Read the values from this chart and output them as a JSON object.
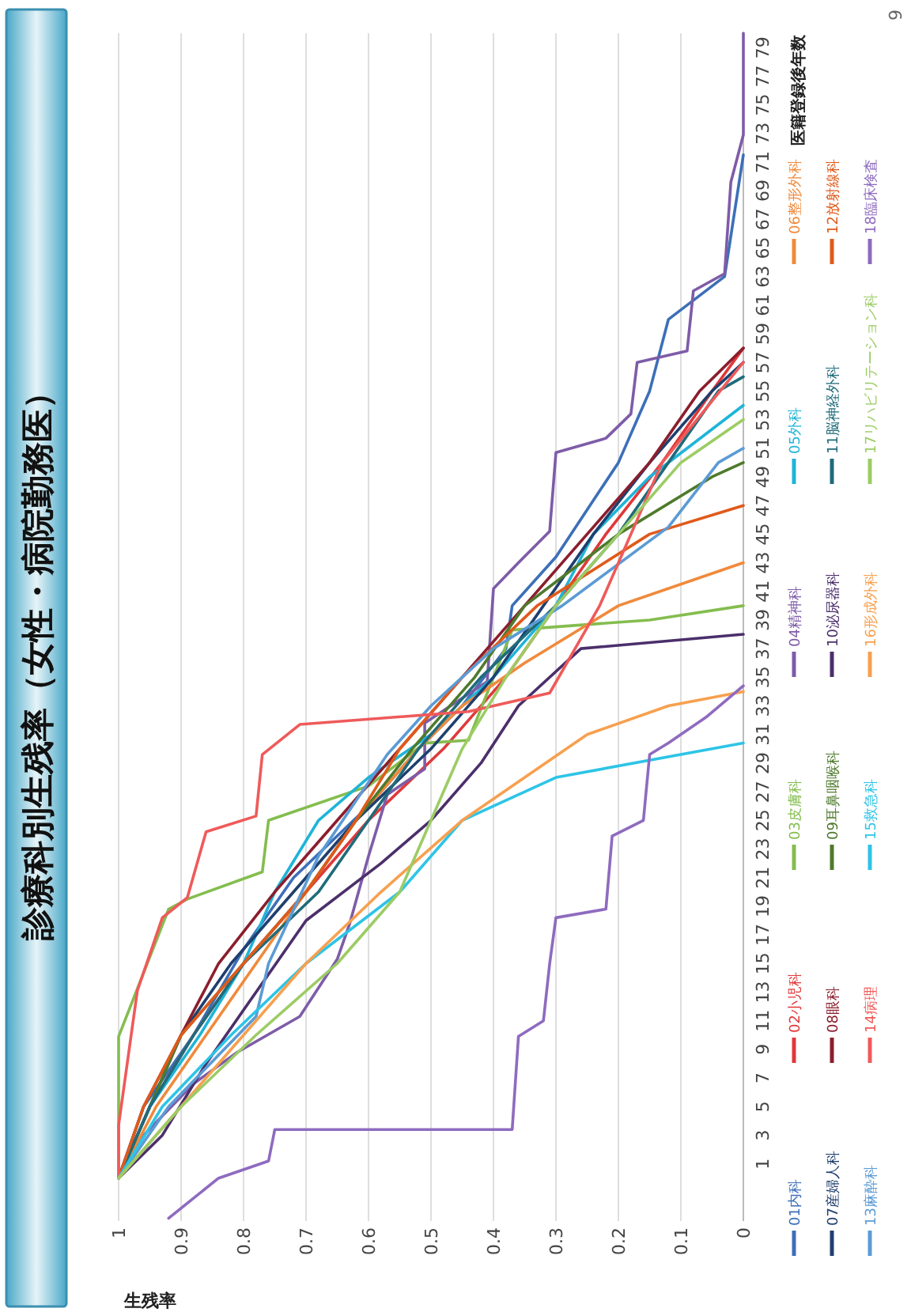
{
  "chart_data": {
    "type": "line",
    "title": "診療科別生残率（女性・病院勤務医）",
    "xlabel": "生残率",
    "ylabel": "医籍登録後年数",
    "xlim": [
      1,
      0
    ],
    "ylim": [
      -3,
      80
    ],
    "xticks": [
      0,
      0.1,
      0.2,
      0.3,
      0.4,
      0.5,
      0.6,
      0.7,
      0.8,
      0.9,
      1
    ],
    "yticks": [
      1,
      3,
      5,
      7,
      9,
      11,
      13,
      15,
      17,
      19,
      21,
      23,
      25,
      27,
      29,
      31,
      33,
      35,
      37,
      39,
      41,
      43,
      45,
      47,
      49,
      51,
      53,
      55,
      57,
      59,
      61,
      63,
      65,
      67,
      69,
      71,
      73,
      75,
      77,
      79
    ],
    "grid": "x",
    "legend": "right",
    "annotations": [
      "9"
    ],
    "series": [
      {
        "name": "01内科",
        "color": "#3d6fb8",
        "values": [
          0,
          5,
          10,
          16,
          21,
          26,
          30,
          33,
          37,
          40,
          43.4,
          50,
          55,
          60,
          63,
          71.5
        ],
        "x": [
          1,
          0.96,
          0.88,
          0.8,
          0.72,
          0.6,
          0.52,
          0.45,
          0.38,
          0.37,
          0.3,
          0.2,
          0.15,
          0.12,
          0.03,
          0
        ]
      },
      {
        "name": "02小児科",
        "color": "#e0383a",
        "values": [
          0,
          5,
          10,
          15,
          20,
          25,
          30,
          35,
          40,
          45,
          50,
          55,
          58
        ],
        "x": [
          1,
          0.95,
          0.88,
          0.8,
          0.7,
          0.6,
          0.48,
          0.38,
          0.3,
          0.22,
          0.13,
          0.05,
          0
        ]
      },
      {
        "name": "03皮膚科",
        "color": "#84bd4f",
        "values": [
          0,
          2,
          9.9,
          18.8,
          19.5,
          21.4,
          25,
          27.4,
          30.4,
          30.6,
          38.3,
          39,
          40
        ],
        "x": [
          1,
          1,
          1,
          0.92,
          0.89,
          0.77,
          0.76,
          0.6,
          0.51,
          0.44,
          0.37,
          0.15,
          0
        ]
      },
      {
        "name": "04精神科",
        "color": "#7e5ca8",
        "values": [
          0,
          3,
          6.6,
          8.8,
          11.3,
          15.3,
          17.8,
          22.5,
          26.8,
          28.6,
          31.8,
          34.7,
          41.2,
          43,
          45.2,
          50.7,
          51.7,
          53.4,
          57,
          57.8,
          62,
          63.2,
          69.6,
          72.9,
          80
        ],
        "x": [
          1,
          0.96,
          0.88,
          0.81,
          0.71,
          0.65,
          0.63,
          0.6,
          0.57,
          0.51,
          0.51,
          0.41,
          0.4,
          0.36,
          0.31,
          0.3,
          0.22,
          0.18,
          0.17,
          0.09,
          0.08,
          0.03,
          0.02,
          0,
          0
        ]
      },
      {
        "name": "05外科",
        "color": "#1fb4d8",
        "values": [
          0,
          5,
          10,
          15,
          20,
          25,
          28,
          31,
          35,
          40,
          45,
          49,
          54
        ],
        "x": [
          1,
          0.95,
          0.87,
          0.8,
          0.75,
          0.68,
          0.6,
          0.5,
          0.4,
          0.3,
          0.24,
          0.15,
          0
        ]
      },
      {
        "name": "06整形外科",
        "color": "#f08a3c",
        "values": [
          0,
          5,
          10,
          15,
          20,
          25,
          30,
          33,
          36,
          40,
          43
        ],
        "x": [
          1,
          0.94,
          0.86,
          0.78,
          0.7,
          0.62,
          0.52,
          0.45,
          0.35,
          0.2,
          0
        ]
      },
      {
        "name": "07産婦人科",
        "color": "#1f3f6e",
        "values": [
          0,
          5,
          10,
          15,
          20,
          25,
          30,
          35,
          40,
          45,
          50,
          55,
          57
        ],
        "x": [
          1,
          0.95,
          0.9,
          0.82,
          0.72,
          0.62,
          0.5,
          0.4,
          0.32,
          0.24,
          0.15,
          0.05,
          0
        ]
      },
      {
        "name": "08眼科",
        "color": "#8b1e2d",
        "values": [
          0,
          5,
          10,
          15,
          20,
          25,
          30,
          35,
          40,
          45,
          50,
          55,
          58
        ],
        "x": [
          1,
          0.96,
          0.9,
          0.84,
          0.75,
          0.65,
          0.55,
          0.45,
          0.35,
          0.25,
          0.15,
          0.07,
          0
        ]
      },
      {
        "name": "09耳鼻咽喉科",
        "color": "#4e7a2c",
        "values": [
          0,
          5,
          10,
          15,
          20,
          25,
          30,
          35,
          40,
          45,
          49,
          50
        ],
        "x": [
          1,
          0.95,
          0.9,
          0.8,
          0.7,
          0.62,
          0.53,
          0.43,
          0.35,
          0.2,
          0.05,
          0
        ]
      },
      {
        "name": "10泌尿器科",
        "color": "#4b2f6b",
        "values": [
          0,
          3,
          8,
          13,
          18,
          22,
          25,
          29,
          33,
          37,
          38
        ],
        "x": [
          1,
          0.93,
          0.86,
          0.78,
          0.7,
          0.58,
          0.5,
          0.42,
          0.36,
          0.26,
          0
        ]
      },
      {
        "name": "11脳神経外科",
        "color": "#1f6b7a",
        "values": [
          0,
          5,
          10,
          15,
          20,
          25,
          30,
          35,
          40,
          45,
          50,
          55,
          56
        ],
        "x": [
          1,
          0.95,
          0.88,
          0.8,
          0.68,
          0.6,
          0.52,
          0.42,
          0.3,
          0.2,
          0.12,
          0.04,
          0
        ]
      },
      {
        "name": "12放射線科",
        "color": "#e05a1a",
        "values": [
          0,
          5,
          10,
          15,
          20,
          25,
          30,
          35,
          40,
          45,
          47
        ],
        "x": [
          1,
          0.96,
          0.9,
          0.8,
          0.7,
          0.62,
          0.55,
          0.45,
          0.33,
          0.15,
          0
        ]
      },
      {
        "name": "13麻酔科",
        "color": "#5b9bd5",
        "values": [
          0,
          5,
          11.3,
          15,
          22.5,
          29.6,
          33,
          37,
          40,
          45.5,
          50,
          51
        ],
        "x": [
          1,
          0.92,
          0.78,
          0.76,
          0.68,
          0.57,
          0.5,
          0.4,
          0.29,
          0.12,
          0.04,
          0
        ]
      },
      {
        "name": "14病理",
        "color": "#ef5a5a",
        "values": [
          0,
          3.7,
          13.1,
          18.2,
          19.6,
          24.2,
          25.3,
          29.6,
          31.7,
          32.6,
          33.9,
          40,
          50,
          57
        ],
        "x": [
          1,
          1,
          0.97,
          0.93,
          0.89,
          0.86,
          0.78,
          0.77,
          0.71,
          0.44,
          0.31,
          0.23,
          0.13,
          0
        ]
      },
      {
        "name": "15救急科",
        "color": "#2ec4e6",
        "values": [
          0,
          5,
          10,
          15,
          20,
          25,
          28,
          30.4
        ],
        "x": [
          1,
          0.93,
          0.82,
          0.7,
          0.55,
          0.45,
          0.3,
          0
        ]
      },
      {
        "name": "16形成外科",
        "color": "#f7a04f",
        "values": [
          0,
          5,
          10,
          15,
          20,
          25,
          28,
          31,
          33,
          34
        ],
        "x": [
          1,
          0.9,
          0.8,
          0.7,
          0.58,
          0.45,
          0.35,
          0.25,
          0.12,
          0
        ]
      },
      {
        "name": "17リハビリテーション科",
        "color": "#9ccc65",
        "values": [
          0,
          5,
          10,
          15,
          20,
          25,
          30,
          35,
          40,
          45,
          50,
          53
        ],
        "x": [
          1,
          0.9,
          0.78,
          0.65,
          0.55,
          0.5,
          0.45,
          0.38,
          0.3,
          0.2,
          0.1,
          0
        ]
      },
      {
        "name": "18臨床検査",
        "color": "#8e6bbf",
        "values": [
          -2.8,
          0,
          1.2,
          3.4,
          3.4,
          9.9,
          11,
          15,
          18.2,
          18.8,
          23.9,
          25,
          29.6,
          30.4,
          32.2,
          34.4
        ],
        "x": [
          0.92,
          0.84,
          0.76,
          0.75,
          0.37,
          0.36,
          0.32,
          0.31,
          0.3,
          0.22,
          0.21,
          0.16,
          0.15,
          0.12,
          0.06,
          0
        ]
      }
    ]
  }
}
